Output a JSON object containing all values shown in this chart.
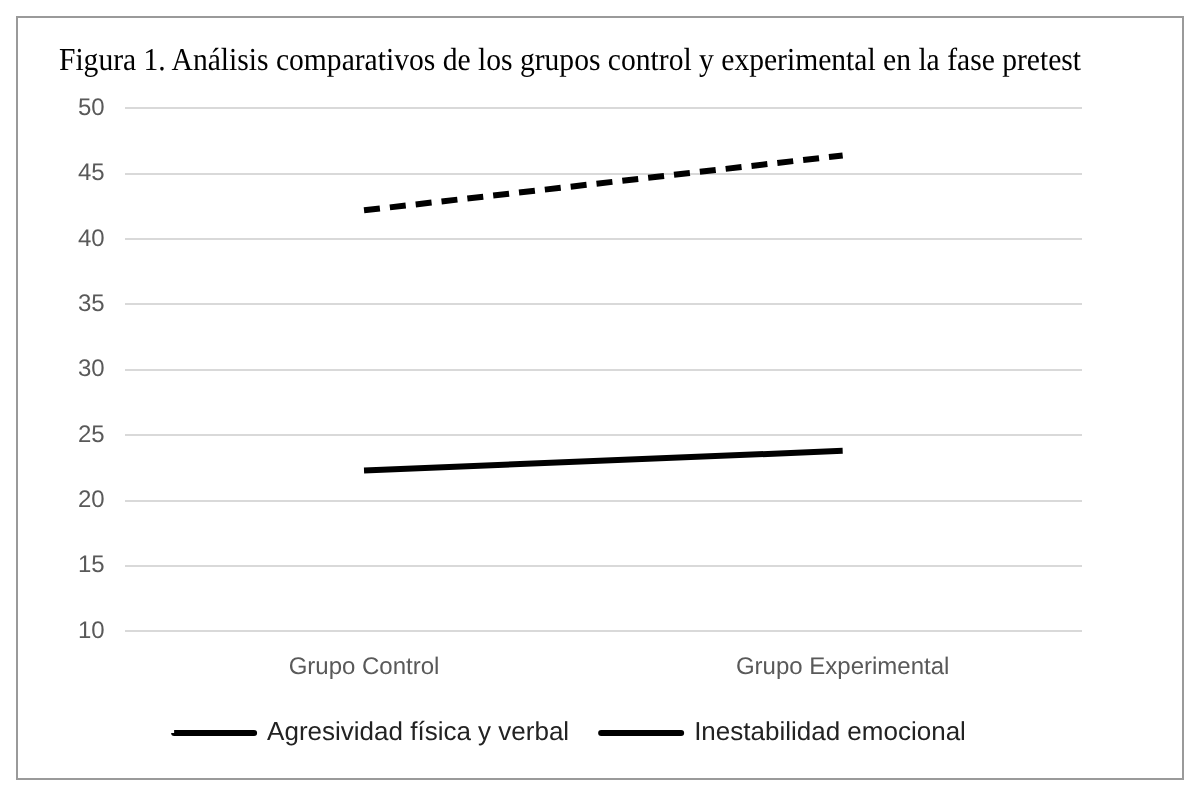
{
  "chart_data": {
    "type": "line",
    "title": "Figura 1. Análisis comparativos de los grupos control y experimental en la fase pretest",
    "categories": [
      "Grupo Control",
      "Grupo Experimental"
    ],
    "series": [
      {
        "name": "Agresividad física y verbal",
        "color": "#000000",
        "values": [
          42.2,
          46.4
        ],
        "line_style": "dashed"
      },
      {
        "name": "Inestabilidad emocional",
        "color": "#000000",
        "values": [
          22.3,
          23.8
        ],
        "line_style": "solid"
      }
    ],
    "ylim": [
      10,
      50
    ],
    "yticks": [
      10,
      15,
      20,
      25,
      30,
      35,
      40,
      45,
      50
    ],
    "grid": "y",
    "legend": "bottom",
    "marker": "none"
  }
}
